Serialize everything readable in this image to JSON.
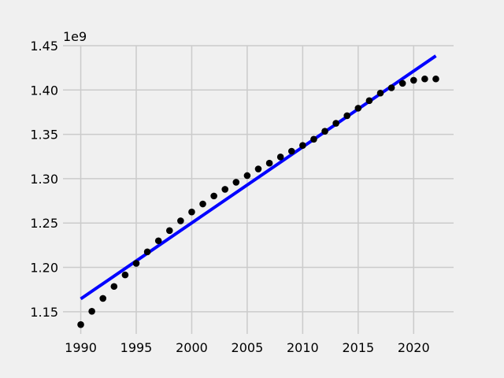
{
  "chart_data": {
    "type": "scatter",
    "title": "",
    "xlabel": "",
    "ylabel": "",
    "y_offset_label": "1e9",
    "xlim": [
      1988.4,
      2023.6
    ],
    "ylim": [
      1.125,
      1.45
    ],
    "grid": true,
    "x_ticks": [
      1990,
      1995,
      2000,
      2005,
      2010,
      2015,
      2020
    ],
    "x_tick_labels": [
      "1990",
      "1995",
      "2000",
      "2005",
      "2010",
      "2015",
      "2020"
    ],
    "y_ticks": [
      1.15,
      1.2,
      1.25,
      1.3,
      1.35,
      1.4,
      1.45
    ],
    "y_tick_labels": [
      "1.15",
      "1.20",
      "1.25",
      "1.30",
      "1.35",
      "1.40",
      "1.45"
    ],
    "series": [
      {
        "kind": "scatter",
        "color": "#000000",
        "x": [
          1990,
          1991,
          1992,
          1993,
          1994,
          1995,
          1996,
          1997,
          1998,
          1999,
          2000,
          2001,
          2002,
          2003,
          2004,
          2005,
          2006,
          2007,
          2008,
          2009,
          2010,
          2011,
          2012,
          2013,
          2014,
          2015,
          2016,
          2017,
          2018,
          2019,
          2020,
          2021,
          2022
        ],
        "y": [
          1.1355,
          1.1505,
          1.165,
          1.1785,
          1.1915,
          1.2045,
          1.2175,
          1.23,
          1.2415,
          1.2525,
          1.2625,
          1.2715,
          1.2805,
          1.288,
          1.296,
          1.3035,
          1.311,
          1.3175,
          1.3245,
          1.331,
          1.3375,
          1.3445,
          1.3535,
          1.3625,
          1.371,
          1.3795,
          1.388,
          1.3965,
          1.4025,
          1.4075,
          1.411,
          1.4125,
          1.4125
        ]
      },
      {
        "kind": "line",
        "color": "#0000ff",
        "x": [
          1990,
          2022
        ],
        "y": [
          1.1645,
          1.4385
        ]
      }
    ]
  }
}
